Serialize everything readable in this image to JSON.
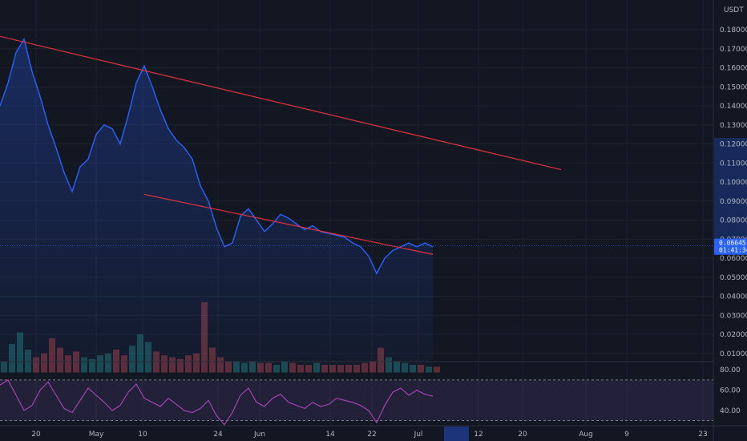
{
  "chart_data": [
    {
      "type": "line",
      "currency": "USDT",
      "y_ticks": [
        "0.18000",
        "0.17000",
        "0.16000",
        "0.15000",
        "0.14000",
        "0.13000",
        "0.12000",
        "0.11000",
        "0.10000",
        "0.09000",
        "0.08000",
        "0.07000",
        "0.06000",
        "0.05000",
        "0.04000",
        "0.03000",
        "0.02000",
        "0.01000"
      ],
      "x_ticks": [
        "20",
        "May",
        "10",
        "24",
        "Jun",
        "14",
        "22",
        "Jul",
        "12",
        "20",
        "Aug",
        "9",
        "23"
      ],
      "ylim": [
        0.0,
        0.19
      ],
      "last_price": "0.06645",
      "countdown": "01:41:34",
      "series": [
        {
          "values": [
            0.14,
            0.152,
            0.168,
            0.175,
            0.158,
            0.145,
            0.13,
            0.118,
            0.105,
            0.095,
            0.108,
            0.112,
            0.125,
            0.13,
            0.128,
            0.12,
            0.135,
            0.152,
            0.161,
            0.15,
            0.138,
            0.128,
            0.122,
            0.118,
            0.112,
            0.098,
            0.09,
            0.076,
            0.066,
            0.068,
            0.082,
            0.086,
            0.08,
            0.074,
            0.078,
            0.083,
            0.081,
            0.078,
            0.075,
            0.077,
            0.074,
            0.073,
            0.072,
            0.071,
            0.068,
            0.066,
            0.061,
            0.052,
            0.06,
            0.064,
            0.066,
            0.068,
            0.066,
            0.068,
            0.066
          ]
        }
      ],
      "volume": [
        0.006,
        0.015,
        0.021,
        0.012,
        0.008,
        0.01,
        0.018,
        0.013,
        0.009,
        0.011,
        0.008,
        0.007,
        0.009,
        0.01,
        0.012,
        0.009,
        0.014,
        0.02,
        0.016,
        0.011,
        0.009,
        0.008,
        0.007,
        0.009,
        0.01,
        0.037,
        0.013,
        0.008,
        0.006,
        0.006,
        0.005,
        0.006,
        0.005,
        0.005,
        0.004,
        0.006,
        0.005,
        0.004,
        0.004,
        0.005,
        0.004,
        0.004,
        0.004,
        0.004,
        0.004,
        0.005,
        0.006,
        0.013,
        0.008,
        0.006,
        0.005,
        0.004,
        0.004,
        0.003,
        0.003
      ],
      "trendlines": [
        {
          "x1": -1,
          "y1": 0.1775,
          "x2": 70,
          "y2": 0.1065
        },
        {
          "x1": 18,
          "y1": 0.0935,
          "x2": 54,
          "y2": 0.062
        }
      ]
    },
    {
      "type": "line",
      "indicator_ticks": [
        "80.00",
        "60.00",
        "40.00"
      ],
      "ylim": [
        25,
        88
      ],
      "bands": [
        70,
        30
      ],
      "values": [
        65,
        70,
        55,
        40,
        45,
        60,
        68,
        55,
        42,
        38,
        50,
        62,
        55,
        48,
        40,
        45,
        58,
        66,
        52,
        48,
        44,
        52,
        46,
        40,
        38,
        42,
        50,
        35,
        26,
        38,
        55,
        62,
        48,
        44,
        52,
        56,
        48,
        45,
        42,
        48,
        44,
        46,
        52,
        50,
        48,
        45,
        40,
        28,
        45,
        58,
        62,
        55,
        60,
        56,
        54
      ]
    }
  ]
}
